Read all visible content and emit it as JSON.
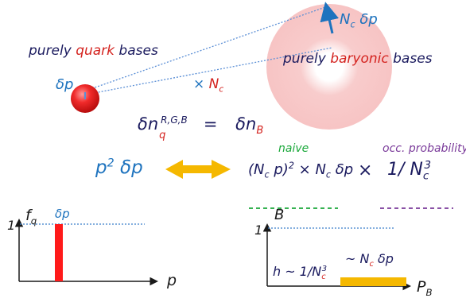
{
  "top": {
    "quark_label": {
      "pre": "purely ",
      "hl": "quark",
      "post": " bases"
    },
    "baryon_label": {
      "pre": "purely ",
      "hl": "baryonic",
      "post": " bases"
    },
    "dp_label": {
      "sym": "δp"
    },
    "nc_dp_label": {
      "N": "N",
      "sub": "c",
      "rest": " δp"
    },
    "times_nc": {
      "x": "× ",
      "N": "N",
      "sub": "c"
    }
  },
  "equation": {
    "lhs": {
      "dn": "δn",
      "sub": "q",
      "sup": "R,G,B"
    },
    "eq": "=",
    "rhs": {
      "dn": "δn",
      "sub": "B"
    }
  },
  "relation": {
    "p2dp": {
      "p": "p",
      "sup": "2",
      "rest": " δp"
    },
    "naive_label": "naive",
    "naive_expr": {
      "a": "(N",
      "sub1": "c",
      "b": " p)",
      "sup": "2",
      "c": " × N",
      "sub2": "c",
      "d": " δp"
    },
    "times": "×",
    "occ_label": "occ. probability",
    "occ_expr": {
      "a": "1/ N",
      "sub": "c",
      "sup": "3"
    },
    "colors": {
      "arrow": "#f5b800",
      "naive_underline": "#1aa83a",
      "occ_underline": "#7a3a9a"
    }
  },
  "left_plot": {
    "y_symbol": {
      "f": "f",
      "sub": "q"
    },
    "y_tick": "1",
    "x_label": "p",
    "bar_label": "δp",
    "bar_color": "#ff1a1a"
  },
  "right_plot": {
    "y_label": "B",
    "y_tick": "1",
    "x_label": {
      "P": "P",
      "sub": "B"
    },
    "height_label": {
      "a": "h ~ 1/N",
      "sub": "c",
      "sup": "3"
    },
    "width_label": {
      "a": "~ N",
      "sub": "c",
      "b": " δp"
    },
    "bar_color": "#f5b800"
  }
}
